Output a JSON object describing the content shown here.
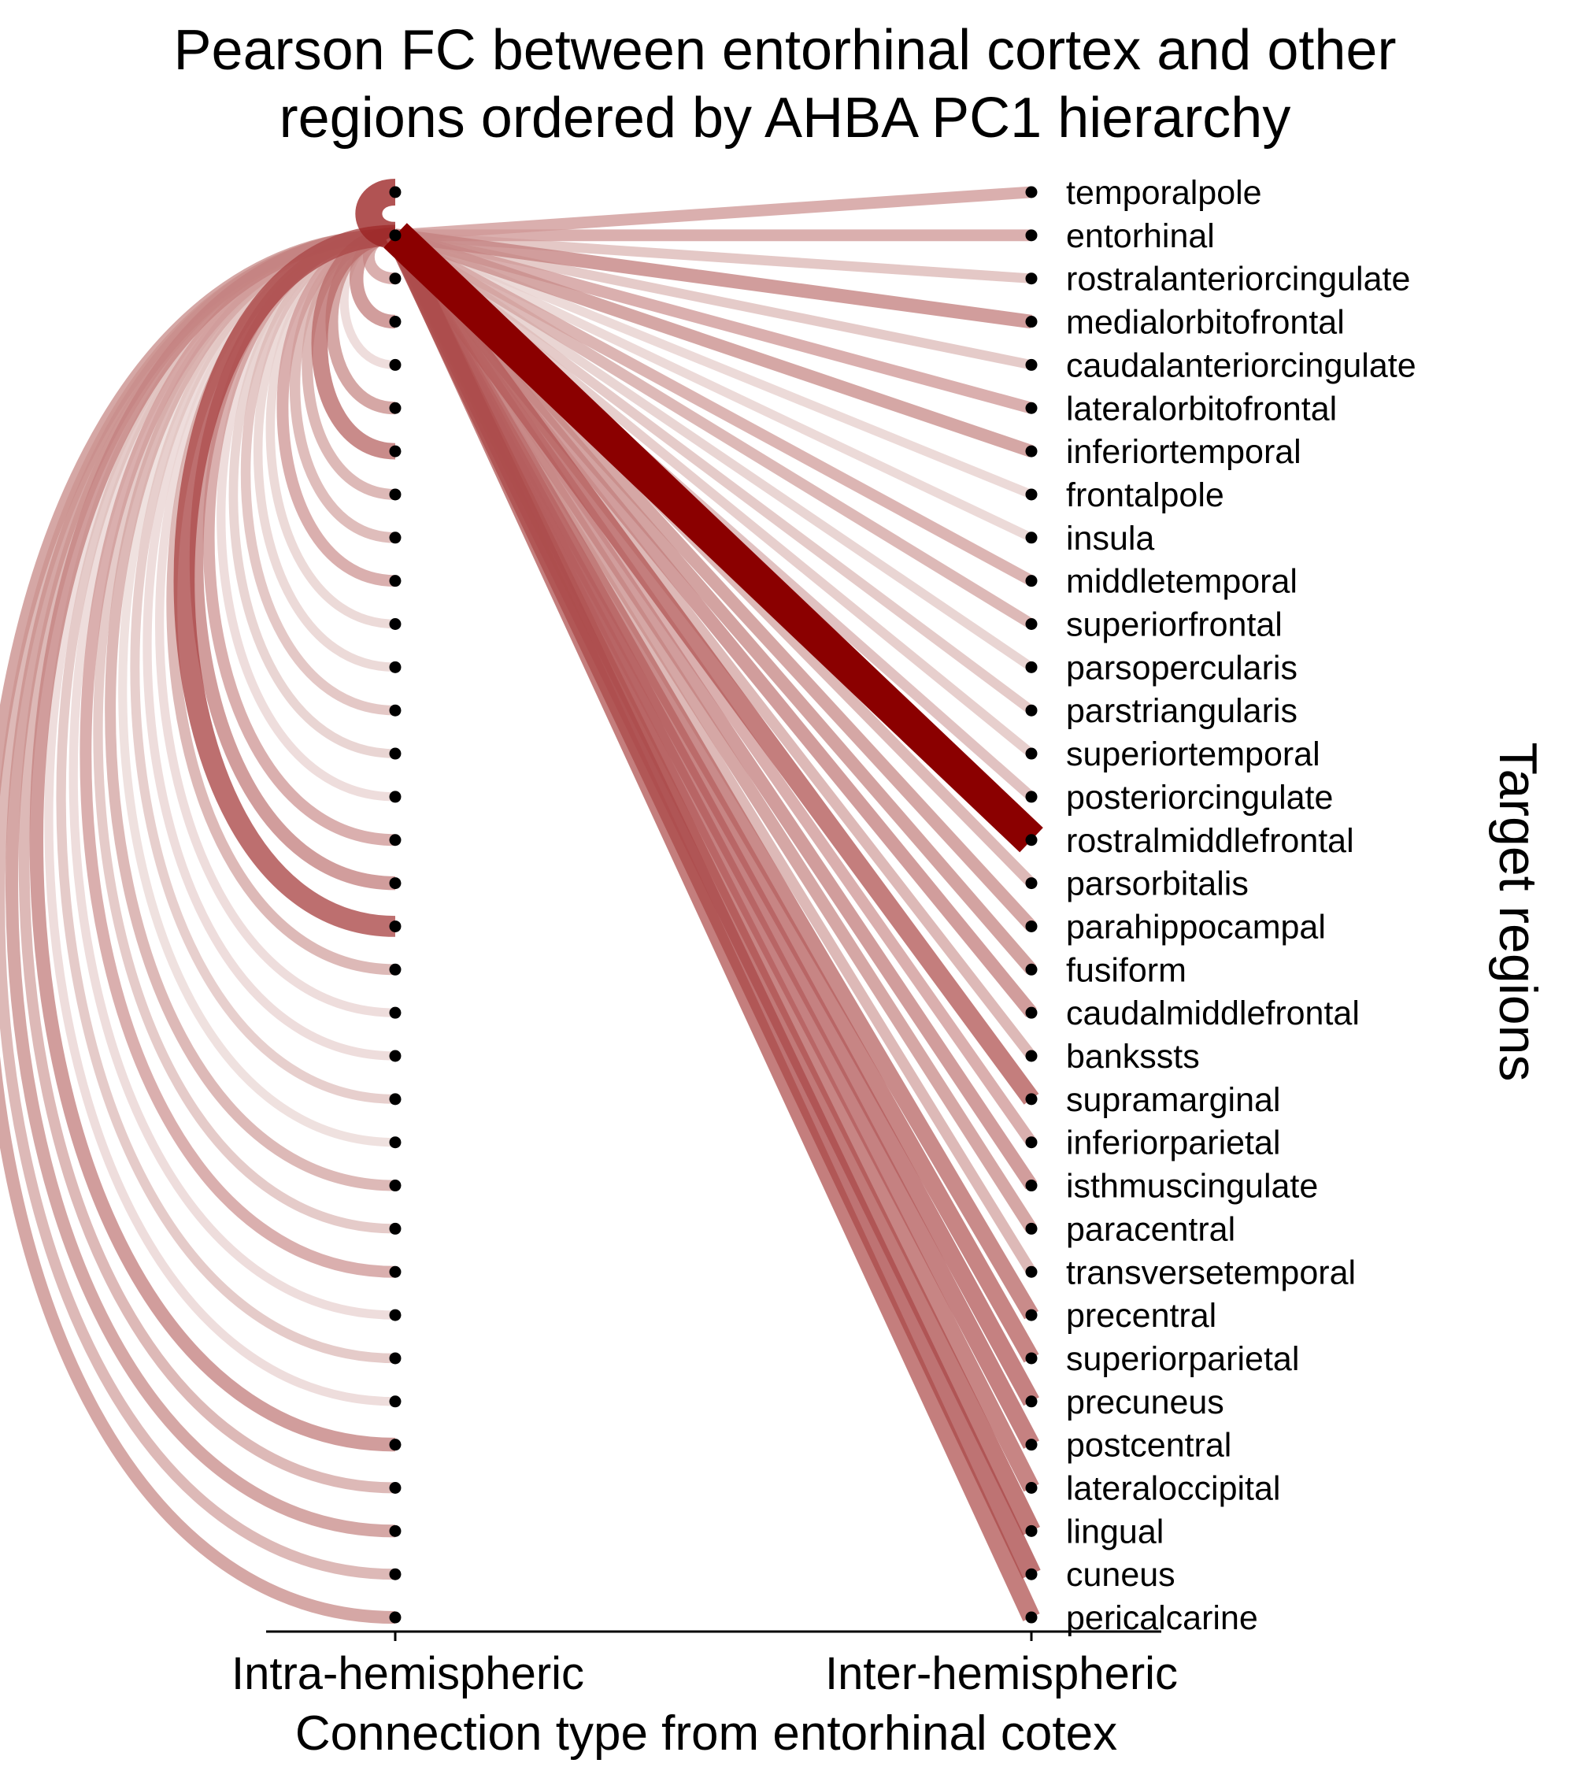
{
  "chart_data": {
    "type": "arc-diagram",
    "title_lines": [
      "Pearson FC between entorhinal cortex and other",
      "regions ordered by AHBA PC1 hierarchy"
    ],
    "xlabel": "Connection type from entorhinal cotex",
    "ylabel": "Target regions",
    "x_categories": [
      "Intra-hemispheric",
      "Inter-hemispheric"
    ],
    "source_region": "entorhinal",
    "regions": [
      "temporalpole",
      "entorhinal",
      "rostralanteriorcingulate",
      "medialorbitofrontal",
      "caudalanteriorcingulate",
      "lateralorbitofrontal",
      "inferiortemporal",
      "frontalpole",
      "insula",
      "middletemporal",
      "superiorfrontal",
      "parsopercularis",
      "parstriangularis",
      "superiortemporal",
      "posteriorcingulate",
      "rostralmiddlefrontal",
      "parsorbitalis",
      "parahippocampal",
      "fusiform",
      "caudalmiddlefrontal",
      "bankssts",
      "supramarginal",
      "inferiorparietal",
      "isthmuscingulate",
      "paracentral",
      "transversetemporal",
      "precentral",
      "superiorparietal",
      "precuneus",
      "postcentral",
      "lateraloccipital",
      "lingual",
      "cuneus",
      "pericalcarine"
    ],
    "intra_fc": [
      0.85,
      null,
      0.35,
      0.45,
      0.1,
      0.4,
      0.55,
      0.3,
      0.28,
      0.35,
      0.12,
      0.12,
      0.22,
      0.15,
      0.1,
      0.35,
      0.45,
      0.7,
      0.3,
      0.1,
      0.1,
      0.18,
      0.08,
      0.3,
      0.2,
      0.35,
      0.1,
      0.2,
      0.1,
      0.45,
      0.3,
      0.4,
      0.3,
      0.4
    ],
    "inter_fc": [
      0.35,
      0.35,
      0.22,
      0.45,
      0.2,
      0.35,
      0.4,
      0.12,
      0.12,
      0.32,
      0.3,
      0.15,
      0.2,
      0.18,
      0.25,
      1.0,
      0.3,
      0.4,
      0.42,
      0.45,
      0.3,
      0.62,
      0.35,
      0.45,
      0.4,
      0.3,
      0.55,
      0.58,
      0.6,
      0.6,
      0.58,
      0.65,
      0.68,
      0.62
    ],
    "colors": {
      "low": "#f3ece9",
      "high": "#8b0000",
      "node": "#000000"
    },
    "legend": "none",
    "grid": false
  }
}
